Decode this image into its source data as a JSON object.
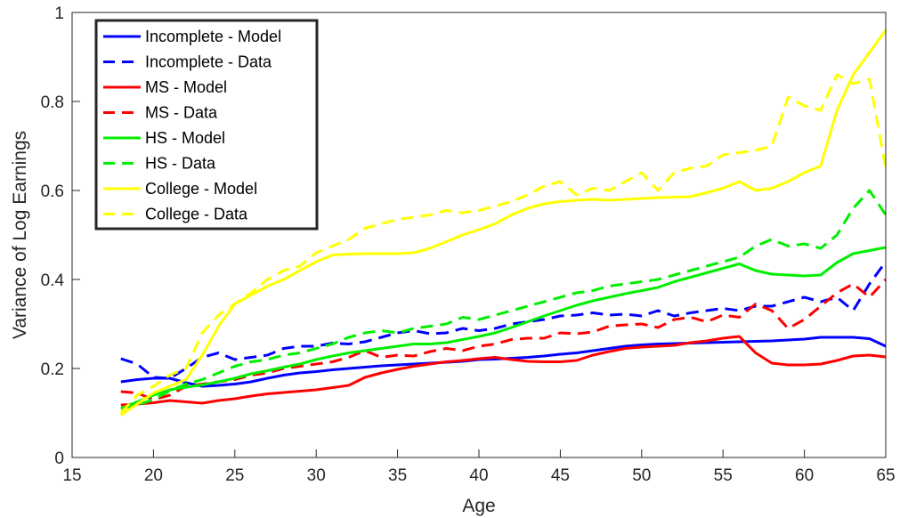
{
  "chart_data": {
    "type": "line",
    "xlabel": "Age",
    "ylabel": "Variance of Log Earnings",
    "xlim": [
      15,
      65
    ],
    "ylim": [
      0,
      1
    ],
    "xticks": [
      "15",
      "20",
      "25",
      "30",
      "35",
      "40",
      "45",
      "50",
      "55",
      "60",
      "65"
    ],
    "yticks": [
      "0",
      "0.2",
      "0.4",
      "0.6",
      "0.8",
      "1"
    ],
    "grid": false,
    "legend_position": "top-left",
    "x": [
      18,
      19,
      20,
      21,
      22,
      23,
      24,
      25,
      26,
      27,
      28,
      29,
      30,
      31,
      32,
      33,
      34,
      35,
      36,
      37,
      38,
      39,
      40,
      41,
      42,
      43,
      44,
      45,
      46,
      47,
      48,
      49,
      50,
      51,
      52,
      53,
      54,
      55,
      56,
      57,
      58,
      59,
      60,
      61,
      62,
      63,
      64,
      65
    ],
    "series": [
      {
        "name": "Incomplete - Model",
        "color": "#0000ff",
        "style": "solid",
        "values": [
          0.17,
          0.175,
          0.178,
          0.178,
          0.168,
          0.16,
          0.162,
          0.165,
          0.17,
          0.178,
          0.185,
          0.19,
          0.193,
          0.197,
          0.2,
          0.203,
          0.206,
          0.208,
          0.21,
          0.212,
          0.214,
          0.216,
          0.22,
          0.221,
          0.223,
          0.225,
          0.228,
          0.232,
          0.235,
          0.24,
          0.245,
          0.25,
          0.253,
          0.255,
          0.256,
          0.257,
          0.258,
          0.259,
          0.26,
          0.261,
          0.262,
          0.264,
          0.266,
          0.27,
          0.27,
          0.27,
          0.267,
          0.25
        ]
      },
      {
        "name": "Incomplete - Data",
        "color": "#0000ff",
        "style": "dashed",
        "values": [
          0.222,
          0.21,
          0.18,
          0.178,
          0.2,
          0.225,
          0.235,
          0.22,
          0.225,
          0.23,
          0.245,
          0.25,
          0.25,
          0.257,
          0.255,
          0.26,
          0.27,
          0.28,
          0.285,
          0.278,
          0.28,
          0.29,
          0.285,
          0.29,
          0.3,
          0.305,
          0.31,
          0.318,
          0.32,
          0.325,
          0.32,
          0.322,
          0.318,
          0.33,
          0.318,
          0.325,
          0.33,
          0.335,
          0.33,
          0.34,
          0.34,
          0.35,
          0.36,
          0.35,
          0.36,
          0.33,
          0.39,
          0.44
        ]
      },
      {
        "name": "MS - Model",
        "color": "#ff0000",
        "style": "solid",
        "values": [
          0.118,
          0.12,
          0.123,
          0.128,
          0.125,
          0.122,
          0.128,
          0.132,
          0.138,
          0.143,
          0.146,
          0.149,
          0.152,
          0.157,
          0.162,
          0.18,
          0.19,
          0.198,
          0.205,
          0.21,
          0.215,
          0.218,
          0.222,
          0.225,
          0.22,
          0.216,
          0.215,
          0.215,
          0.218,
          0.23,
          0.238,
          0.245,
          0.248,
          0.25,
          0.252,
          0.258,
          0.262,
          0.268,
          0.272,
          0.235,
          0.212,
          0.208,
          0.208,
          0.21,
          0.218,
          0.228,
          0.23,
          0.226
        ]
      },
      {
        "name": "MS - Data",
        "color": "#ff0000",
        "style": "dashed",
        "values": [
          0.148,
          0.145,
          0.13,
          0.14,
          0.16,
          0.165,
          0.17,
          0.175,
          0.185,
          0.19,
          0.2,
          0.205,
          0.21,
          0.215,
          0.225,
          0.24,
          0.225,
          0.23,
          0.228,
          0.238,
          0.245,
          0.24,
          0.25,
          0.255,
          0.265,
          0.268,
          0.268,
          0.28,
          0.278,
          0.282,
          0.295,
          0.298,
          0.3,
          0.292,
          0.31,
          0.315,
          0.305,
          0.32,
          0.315,
          0.345,
          0.33,
          0.29,
          0.31,
          0.34,
          0.37,
          0.39,
          0.36,
          0.4
        ]
      },
      {
        "name": "HS - Model",
        "color": "#00ee00",
        "style": "solid",
        "values": [
          0.11,
          0.125,
          0.14,
          0.152,
          0.158,
          0.163,
          0.17,
          0.178,
          0.188,
          0.195,
          0.203,
          0.21,
          0.22,
          0.228,
          0.235,
          0.24,
          0.245,
          0.25,
          0.255,
          0.255,
          0.258,
          0.265,
          0.272,
          0.28,
          0.292,
          0.305,
          0.318,
          0.33,
          0.342,
          0.352,
          0.36,
          0.368,
          0.375,
          0.382,
          0.395,
          0.405,
          0.415,
          0.425,
          0.435,
          0.42,
          0.412,
          0.41,
          0.408,
          0.41,
          0.438,
          0.458,
          0.465,
          0.472
        ]
      },
      {
        "name": "HS - Data",
        "color": "#00ee00",
        "style": "dashed",
        "values": [
          0.11,
          0.118,
          0.13,
          0.15,
          0.165,
          0.175,
          0.19,
          0.205,
          0.215,
          0.22,
          0.23,
          0.235,
          0.245,
          0.255,
          0.27,
          0.28,
          0.285,
          0.28,
          0.29,
          0.295,
          0.3,
          0.315,
          0.31,
          0.32,
          0.33,
          0.34,
          0.35,
          0.36,
          0.37,
          0.375,
          0.385,
          0.39,
          0.395,
          0.4,
          0.41,
          0.42,
          0.43,
          0.44,
          0.45,
          0.475,
          0.49,
          0.475,
          0.48,
          0.47,
          0.5,
          0.56,
          0.6,
          0.545
        ]
      },
      {
        "name": "College - Model",
        "color": "#ffff00",
        "style": "solid",
        "values": [
          0.095,
          0.12,
          0.145,
          0.16,
          0.175,
          0.23,
          0.295,
          0.345,
          0.365,
          0.385,
          0.4,
          0.42,
          0.44,
          0.455,
          0.457,
          0.458,
          0.458,
          0.458,
          0.46,
          0.47,
          0.485,
          0.5,
          0.512,
          0.525,
          0.545,
          0.56,
          0.57,
          0.575,
          0.578,
          0.58,
          0.578,
          0.58,
          0.582,
          0.584,
          0.585,
          0.586,
          0.595,
          0.605,
          0.62,
          0.6,
          0.605,
          0.62,
          0.64,
          0.655,
          0.78,
          0.86,
          0.91,
          0.96
        ]
      },
      {
        "name": "College - Data",
        "color": "#ffff00",
        "style": "dashed",
        "values": [
          0.1,
          0.14,
          0.16,
          0.185,
          0.2,
          0.28,
          0.32,
          0.345,
          0.37,
          0.4,
          0.42,
          0.43,
          0.46,
          0.475,
          0.49,
          0.515,
          0.525,
          0.535,
          0.54,
          0.545,
          0.555,
          0.55,
          0.555,
          0.565,
          0.575,
          0.59,
          0.61,
          0.62,
          0.59,
          0.605,
          0.6,
          0.62,
          0.64,
          0.6,
          0.64,
          0.65,
          0.655,
          0.68,
          0.685,
          0.69,
          0.7,
          0.81,
          0.79,
          0.78,
          0.86,
          0.84,
          0.85,
          0.65
        ]
      }
    ]
  }
}
